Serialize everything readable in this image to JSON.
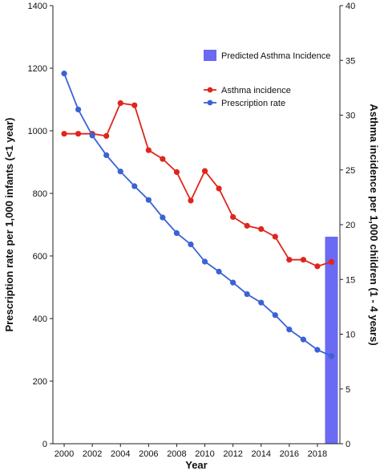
{
  "chart_data": {
    "type": "line",
    "xlabel": "Year",
    "ylabel_left": "Prescription rate per 1,000 infants (<1 year)",
    "ylabel_right": "Asthma incidence per 1,000 children (1 - 4 years)",
    "xlim": [
      1999.2,
      2019.6
    ],
    "ylim_left": [
      0,
      1400
    ],
    "ylim_right": [
      0,
      40
    ],
    "x_ticks": [
      2000,
      2002,
      2004,
      2006,
      2008,
      2010,
      2012,
      2014,
      2016,
      2018
    ],
    "y_left_ticks": [
      0,
      200,
      400,
      600,
      800,
      1000,
      1200,
      1400
    ],
    "y_right_ticks": [
      0,
      5,
      10,
      15,
      20,
      25,
      30,
      35,
      40
    ],
    "grid": false,
    "legend_position": "top-right",
    "series": [
      {
        "name": "Asthma incidence",
        "axis": "right",
        "color": "#e0251c",
        "x": [
          2000,
          2001,
          2002,
          2003,
          2004,
          2005,
          2006,
          2007,
          2008,
          2009,
          2010,
          2011,
          2012,
          2013,
          2014,
          2015,
          2016,
          2017,
          2018,
          2019
        ],
        "values": [
          28.3,
          28.3,
          28.3,
          28.1,
          31.1,
          30.9,
          26.8,
          26.0,
          24.8,
          22.2,
          24.9,
          23.3,
          20.7,
          19.9,
          19.6,
          18.9,
          16.8,
          16.8,
          16.2,
          16.6
        ]
      },
      {
        "name": "Prescription rate",
        "axis": "left",
        "color": "#3a62d6",
        "x": [
          2000,
          2001,
          2002,
          2003,
          2004,
          2005,
          2006,
          2007,
          2008,
          2009,
          2010,
          2011,
          2012,
          2013,
          2014,
          2015,
          2016,
          2017,
          2018,
          2019
        ],
        "values": [
          1183,
          1068,
          985,
          922,
          870,
          823,
          779,
          723,
          673,
          637,
          582,
          550,
          515,
          478,
          451,
          411,
          365,
          333,
          300,
          280
        ]
      }
    ],
    "bar": {
      "name": "Predicted Asthma Incidence",
      "axis": "right",
      "x": 2019,
      "value": 18.9,
      "color": "#6a6af2"
    }
  }
}
